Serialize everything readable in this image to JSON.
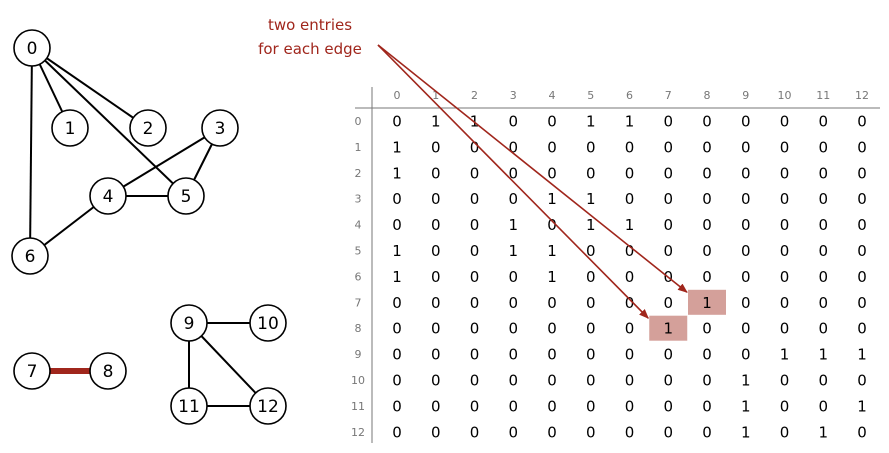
{
  "annotation": {
    "line1": "two entries",
    "line2": "for each edge",
    "color": "#a0261c"
  },
  "graph": {
    "vertices": [
      "0",
      "1",
      "2",
      "3",
      "4",
      "5",
      "6",
      "7",
      "8",
      "9",
      "10",
      "11",
      "12"
    ],
    "edges": [
      [
        0,
        1
      ],
      [
        0,
        2
      ],
      [
        0,
        5
      ],
      [
        0,
        6
      ],
      [
        3,
        4
      ],
      [
        3,
        5
      ],
      [
        4,
        5
      ],
      [
        4,
        6
      ],
      [
        7,
        8
      ],
      [
        9,
        10
      ],
      [
        9,
        11
      ],
      [
        9,
        12
      ],
      [
        11,
        12
      ]
    ],
    "highlighted_edge": [
      7,
      8
    ],
    "highlight_color": "#a0261c"
  },
  "matrix": {
    "headers": [
      "0",
      "1",
      "2",
      "3",
      "4",
      "5",
      "6",
      "7",
      "8",
      "9",
      "10",
      "11",
      "12"
    ],
    "rows": [
      [
        0,
        1,
        1,
        0,
        0,
        1,
        1,
        0,
        0,
        0,
        0,
        0,
        0
      ],
      [
        1,
        0,
        0,
        0,
        0,
        0,
        0,
        0,
        0,
        0,
        0,
        0,
        0
      ],
      [
        1,
        0,
        0,
        0,
        0,
        0,
        0,
        0,
        0,
        0,
        0,
        0,
        0
      ],
      [
        0,
        0,
        0,
        0,
        1,
        1,
        0,
        0,
        0,
        0,
        0,
        0,
        0
      ],
      [
        0,
        0,
        0,
        1,
        0,
        1,
        1,
        0,
        0,
        0,
        0,
        0,
        0
      ],
      [
        1,
        0,
        0,
        1,
        1,
        0,
        0,
        0,
        0,
        0,
        0,
        0,
        0
      ],
      [
        1,
        0,
        0,
        0,
        1,
        0,
        0,
        0,
        0,
        0,
        0,
        0,
        0
      ],
      [
        0,
        0,
        0,
        0,
        0,
        0,
        0,
        0,
        1,
        0,
        0,
        0,
        0
      ],
      [
        0,
        0,
        0,
        0,
        0,
        0,
        0,
        1,
        0,
        0,
        0,
        0,
        0
      ],
      [
        0,
        0,
        0,
        0,
        0,
        0,
        0,
        0,
        0,
        0,
        1,
        1,
        1
      ],
      [
        0,
        0,
        0,
        0,
        0,
        0,
        0,
        0,
        0,
        1,
        0,
        0,
        0
      ],
      [
        0,
        0,
        0,
        0,
        0,
        0,
        0,
        0,
        0,
        1,
        0,
        0,
        1
      ],
      [
        0,
        0,
        0,
        0,
        0,
        0,
        0,
        0,
        0,
        1,
        0,
        1,
        0
      ]
    ],
    "highlighted_cells": [
      [
        7,
        8
      ],
      [
        8,
        7
      ]
    ],
    "highlight_fill": "#d4a09a"
  }
}
